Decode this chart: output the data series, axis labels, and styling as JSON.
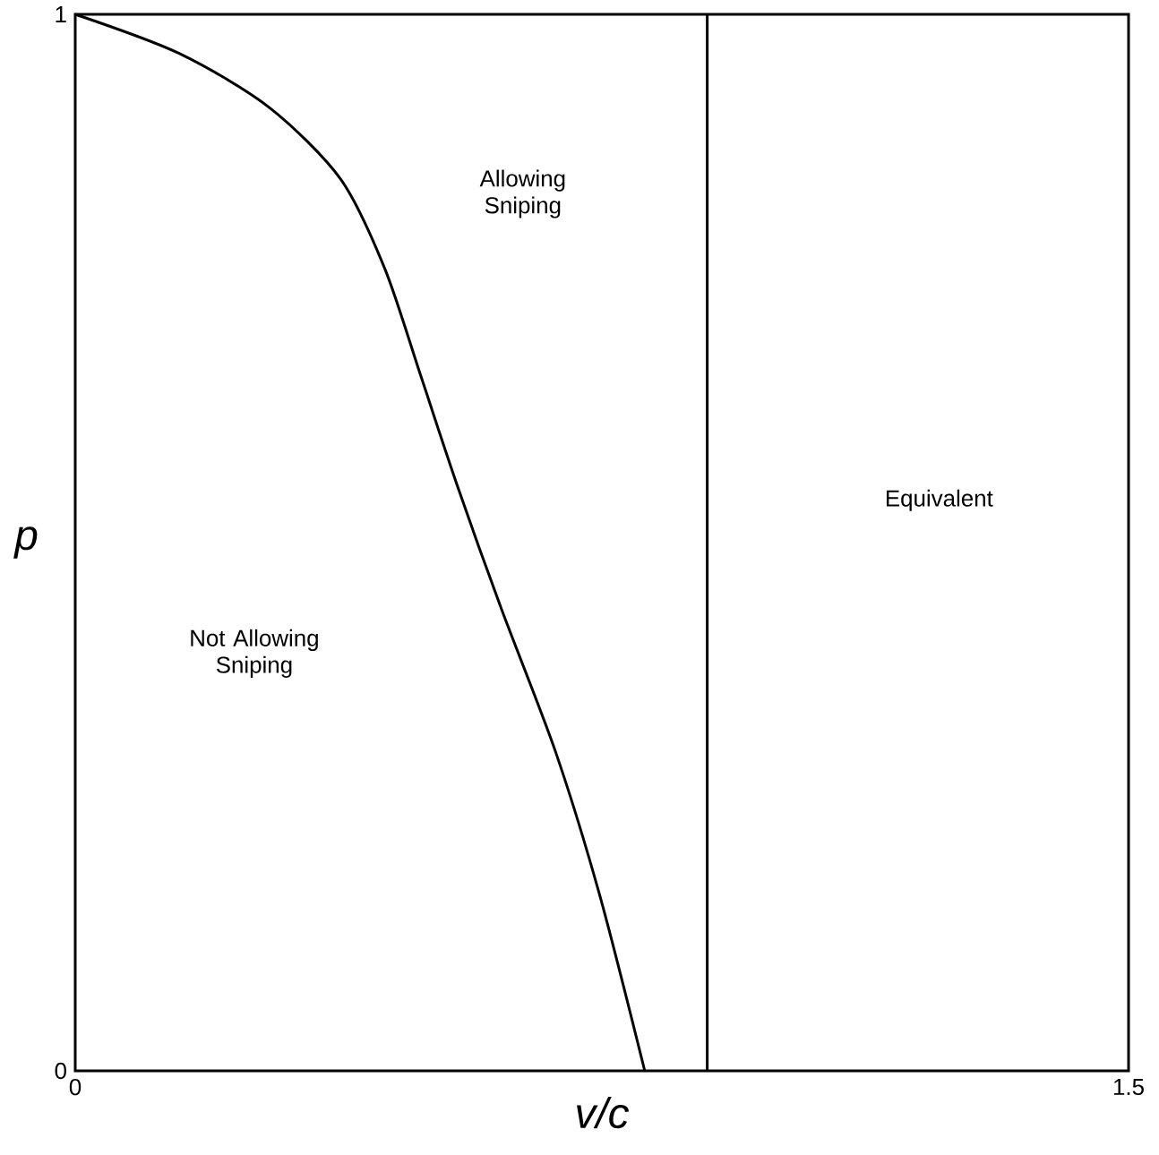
{
  "chart_data": {
    "type": "line",
    "xlabel": "v/c",
    "ylabel": "p",
    "x": [
      0,
      0.148,
      0.276,
      0.378,
      0.441,
      0.492,
      0.543,
      0.607,
      0.684,
      0.747,
      0.811
    ],
    "series": [
      {
        "color": "#000000",
        "values": [
          1,
          0.963,
          0.912,
          0.844,
          0.759,
          0.658,
          0.556,
          0.437,
          0.302,
          0.166,
          0
        ]
      }
    ],
    "xlim": [
      0,
      1.5
    ],
    "ylim": [
      0,
      1
    ],
    "xticks": [
      0,
      1.5
    ],
    "yticks": [
      0,
      1
    ],
    "ref_lines": [
      {
        "axis": "x",
        "value": 0.9,
        "color": "#000000"
      }
    ],
    "annotations": [
      "Allowing Sniping",
      "Equivalent",
      "Not Allowing Sniping"
    ],
    "marker": "none",
    "line_style": "solid"
  }
}
